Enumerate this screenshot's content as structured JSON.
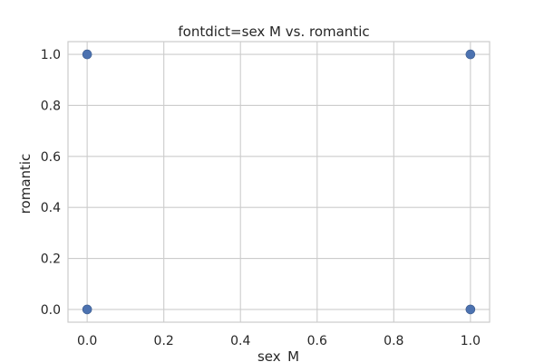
{
  "chart_data": {
    "type": "scatter",
    "title": "fontdict=sex M vs. romantic",
    "xlabel": "sex_M",
    "ylabel": "romantic",
    "xlim": [
      -0.05,
      1.05
    ],
    "ylim": [
      -0.05,
      1.05
    ],
    "xticks": [
      0.0,
      0.2,
      0.4,
      0.6,
      0.8,
      1.0
    ],
    "yticks": [
      0.0,
      0.2,
      0.4,
      0.6,
      0.8,
      1.0
    ],
    "tick_labels_x": [
      "0.0",
      "0.2",
      "0.4",
      "0.6",
      "0.8",
      "1.0"
    ],
    "tick_labels_y": [
      "0.0",
      "0.2",
      "0.4",
      "0.6",
      "0.8",
      "1.0"
    ],
    "grid": true,
    "points": [
      {
        "x": 0.0,
        "y": 1.0
      },
      {
        "x": 1.0,
        "y": 1.0
      },
      {
        "x": 0.0,
        "y": 0.0
      },
      {
        "x": 1.0,
        "y": 0.0
      }
    ],
    "marker_color": "#4c72b0",
    "grid_color": "#cccccc",
    "spine_color": "#cccccc"
  }
}
